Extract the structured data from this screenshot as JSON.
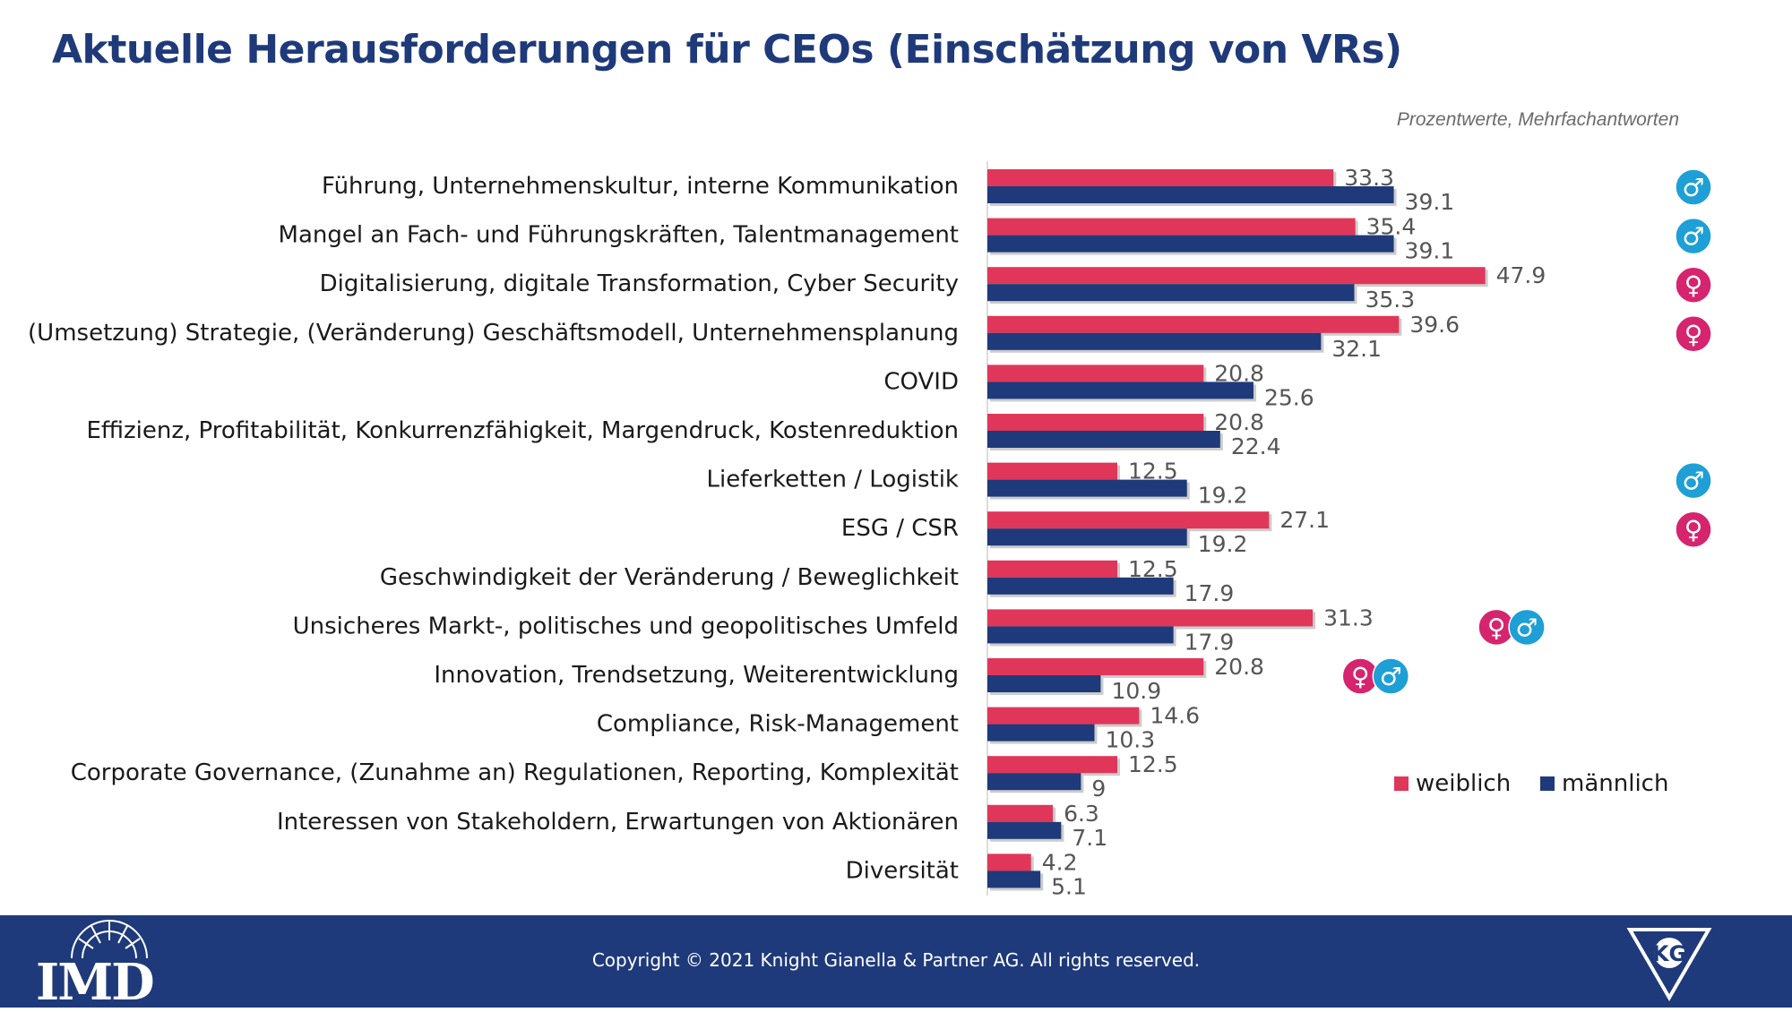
{
  "title": "Aktuelle Herausforderungen für CEOs (Einschätzung von VRs)",
  "subtitle": "Prozentwerte, Mehrfachantworten",
  "colors": {
    "weiblich": "#e0365a",
    "maennlich": "#1f3a7a",
    "female_icon": "#d6246e",
    "male_icon": "#1e9fd6"
  },
  "chart_data": {
    "type": "bar",
    "orientation": "horizontal",
    "categories": [
      "Führung, Unternehmenskultur, interne Kommunikation",
      "Mangel an Fach- und Führungskräften, Talentmanagement",
      "Digitalisierung, digitale Transformation, Cyber Security",
      "(Umsetzung) Strategie, (Veränderung) Geschäftsmodell, Unternehmensplanung",
      "COVID",
      "Effizienz, Profitabilität, Konkurrenzfähigkeit, Margendruck, Kostenreduktion",
      "Lieferketten / Logistik",
      "ESG / CSR",
      "Geschwindigkeit der Veränderung / Beweglichkeit",
      "Unsicheres Markt-, politisches und geopolitisches Umfeld",
      "Innovation, Trendsetzung, Weiterentwicklung",
      "Compliance, Risk-Management",
      "Corporate Governance, (Zunahme an) Regulationen, Reporting, Komplexität",
      "Interessen von Stakeholdern, Erwartungen von Aktionären",
      "Diversität"
    ],
    "series": [
      {
        "name": "weiblich",
        "values": [
          33.3,
          35.4,
          47.9,
          39.6,
          20.8,
          20.8,
          12.5,
          27.1,
          12.5,
          31.3,
          20.8,
          14.6,
          12.5,
          6.3,
          4.2
        ]
      },
      {
        "name": "männlich",
        "values": [
          39.1,
          39.1,
          35.3,
          32.1,
          25.6,
          22.4,
          19.2,
          19.2,
          17.9,
          17.9,
          10.9,
          10.3,
          9,
          7.1,
          5.1
        ]
      }
    ],
    "markers": [
      [
        "male"
      ],
      [
        "male"
      ],
      [
        "female"
      ],
      [
        "female"
      ],
      [],
      [],
      [
        "male"
      ],
      [
        "female"
      ],
      [],
      [
        "female",
        "male"
      ],
      [
        "female",
        "male"
      ],
      [],
      [],
      [],
      []
    ],
    "legend_position": "bottom-right"
  },
  "footer": {
    "copyright": "Copyright © 2021 Knight Gianella & Partner AG. All rights reserved.",
    "logo_left": "IMD",
    "logo_right": "KG"
  }
}
